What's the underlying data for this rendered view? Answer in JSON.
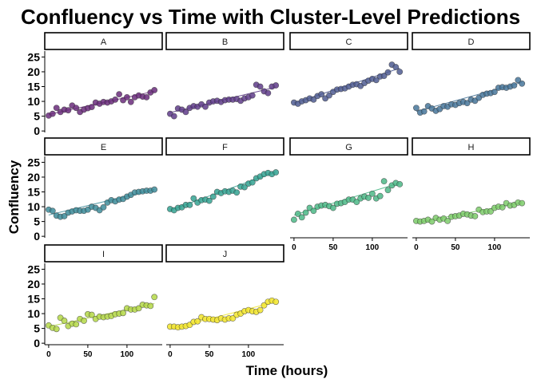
{
  "chart_data": {
    "type": "scatter",
    "title": "Confluency vs Time with Cluster-Level Predictions",
    "xlabel": "Time (hours)",
    "ylabel": "Confluency",
    "x_ticks": [
      0,
      50,
      100
    ],
    "y_ticks": [
      0,
      5,
      10,
      15,
      20,
      25
    ],
    "xlim": [
      -5,
      145
    ],
    "ylim": [
      -0.5,
      27
    ],
    "grid": false,
    "legend": "none",
    "facets": [
      {
        "label": "A",
        "color": "#6a2c7b",
        "x": [
          0,
          5,
          10,
          15,
          20,
          25,
          30,
          35,
          40,
          45,
          50,
          55,
          60,
          65,
          70,
          75,
          80,
          85,
          90,
          95,
          100,
          105,
          110,
          115,
          120,
          125,
          130,
          135
        ],
        "y": [
          5.2,
          5.8,
          7.8,
          6.4,
          7.2,
          7.0,
          8.6,
          7.8,
          6.4,
          7.2,
          7.7,
          8.1,
          9.6,
          9.2,
          9.8,
          9.6,
          10.0,
          10.6,
          12.4,
          10.4,
          11.4,
          9.8,
          11.4,
          12.0,
          11.6,
          11.4,
          13.0,
          13.8
        ],
        "fit": [
          5.6,
          13.4
        ]
      },
      {
        "label": "B",
        "color": "#5f3c8a",
        "x": [
          0,
          5,
          10,
          15,
          20,
          25,
          30,
          35,
          40,
          45,
          50,
          55,
          60,
          65,
          70,
          75,
          80,
          85,
          90,
          95,
          100,
          105,
          110,
          115,
          120,
          125,
          130,
          135
        ],
        "y": [
          5.8,
          5.0,
          7.6,
          7.2,
          6.4,
          7.8,
          8.4,
          8.2,
          9.0,
          8.2,
          9.6,
          10.0,
          10.2,
          9.8,
          10.4,
          10.6,
          10.6,
          10.8,
          10.2,
          11.0,
          11.4,
          12.0,
          15.6,
          15.0,
          13.4,
          12.8,
          15.0,
          15.4
        ],
        "fit": [
          6.2,
          14.8
        ]
      },
      {
        "label": "C",
        "color": "#4f5c92",
        "x": [
          0,
          5,
          10,
          15,
          20,
          25,
          30,
          35,
          40,
          45,
          50,
          55,
          60,
          65,
          70,
          75,
          80,
          85,
          90,
          95,
          100,
          105,
          110,
          115,
          120,
          125,
          130,
          135
        ],
        "y": [
          9.6,
          9.2,
          10.0,
          10.4,
          11.0,
          10.6,
          11.8,
          12.4,
          11.0,
          12.0,
          13.2,
          14.0,
          14.2,
          14.4,
          15.0,
          15.6,
          15.8,
          15.2,
          16.2,
          17.0,
          17.6,
          17.2,
          18.4,
          18.6,
          19.8,
          22.4,
          21.6,
          20.0
        ],
        "fit": [
          9.4,
          21.2
        ]
      },
      {
        "label": "D",
        "color": "#47759a",
        "x": [
          0,
          5,
          10,
          15,
          20,
          25,
          30,
          35,
          40,
          45,
          50,
          55,
          60,
          65,
          70,
          75,
          80,
          85,
          90,
          95,
          100,
          105,
          110,
          115,
          120,
          125,
          130,
          135
        ],
        "y": [
          7.8,
          6.2,
          6.6,
          8.4,
          7.6,
          6.8,
          7.4,
          8.4,
          8.2,
          9.0,
          8.8,
          9.4,
          9.8,
          9.4,
          10.6,
          10.2,
          11.2,
          12.2,
          12.6,
          12.8,
          13.2,
          14.6,
          14.8,
          14.6,
          15.0,
          15.4,
          17.2,
          16.0
        ],
        "fit": [
          6.6,
          16.4
        ]
      },
      {
        "label": "E",
        "color": "#3d8c9a",
        "x": [
          0,
          5,
          10,
          15,
          20,
          25,
          30,
          35,
          40,
          45,
          50,
          55,
          60,
          65,
          70,
          75,
          80,
          85,
          90,
          95,
          100,
          105,
          110,
          115,
          120,
          125,
          130,
          135
        ],
        "y": [
          9.0,
          8.6,
          7.0,
          6.6,
          6.8,
          8.0,
          8.4,
          8.8,
          8.6,
          8.6,
          9.0,
          10.0,
          9.6,
          8.8,
          9.8,
          11.4,
          12.2,
          11.8,
          12.4,
          12.6,
          13.4,
          14.0,
          14.8,
          15.0,
          15.2,
          15.4,
          15.4,
          15.8
        ],
        "fit": [
          7.2,
          15.8
        ]
      },
      {
        "label": "F",
        "color": "#34a292",
        "x": [
          0,
          5,
          10,
          15,
          20,
          25,
          30,
          35,
          40,
          45,
          50,
          55,
          60,
          65,
          70,
          75,
          80,
          85,
          90,
          95,
          100,
          105,
          110,
          115,
          120,
          125,
          130,
          135
        ],
        "y": [
          9.2,
          8.8,
          9.6,
          9.8,
          10.6,
          10.6,
          12.8,
          11.4,
          12.2,
          12.4,
          12.0,
          13.4,
          15.0,
          14.6,
          15.2,
          15.0,
          15.4,
          14.8,
          16.8,
          16.6,
          17.8,
          18.2,
          19.6,
          20.2,
          21.0,
          21.4,
          21.0,
          21.6
        ],
        "fit": [
          8.8,
          21.8
        ]
      },
      {
        "label": "G",
        "color": "#4cb887",
        "x": [
          0,
          5,
          10,
          15,
          20,
          25,
          30,
          35,
          40,
          45,
          50,
          55,
          60,
          65,
          70,
          75,
          80,
          85,
          90,
          95,
          100,
          105,
          110,
          115,
          120,
          125,
          130,
          135
        ],
        "y": [
          5.6,
          7.6,
          6.4,
          8.0,
          9.6,
          8.6,
          10.0,
          10.4,
          10.6,
          10.2,
          9.6,
          11.0,
          11.2,
          11.6,
          12.4,
          12.4,
          11.6,
          12.8,
          13.4,
          13.0,
          14.4,
          12.8,
          13.6,
          18.6,
          15.6,
          17.2,
          18.0,
          17.6
        ],
        "fit": [
          7.2,
          18.0
        ]
      },
      {
        "label": "H",
        "color": "#7ccb6a",
        "x": [
          0,
          5,
          10,
          15,
          20,
          25,
          30,
          35,
          40,
          45,
          50,
          55,
          60,
          65,
          70,
          75,
          80,
          85,
          90,
          95,
          100,
          105,
          110,
          115,
          120,
          125,
          130,
          135
        ],
        "y": [
          5.2,
          5.0,
          5.2,
          5.6,
          5.0,
          6.2,
          5.6,
          6.0,
          5.2,
          6.6,
          6.8,
          7.0,
          7.6,
          7.4,
          7.0,
          6.8,
          9.0,
          8.2,
          8.4,
          8.4,
          9.6,
          10.0,
          9.8,
          11.2,
          10.4,
          10.6,
          11.4,
          11.2
        ],
        "fit": [
          4.6,
          11.4
        ]
      },
      {
        "label": "I",
        "color": "#b4d846",
        "x": [
          0,
          5,
          10,
          15,
          20,
          25,
          30,
          35,
          40,
          45,
          50,
          55,
          60,
          65,
          70,
          75,
          80,
          85,
          90,
          95,
          100,
          105,
          110,
          115,
          120,
          125,
          130,
          135
        ],
        "y": [
          6.0,
          5.2,
          4.8,
          8.6,
          7.6,
          5.8,
          6.6,
          6.4,
          8.2,
          7.6,
          9.8,
          9.6,
          8.2,
          9.0,
          8.8,
          9.0,
          9.2,
          9.8,
          10.0,
          10.2,
          11.8,
          11.4,
          11.4,
          11.8,
          13.0,
          12.8,
          12.6,
          15.6
        ],
        "fit": [
          5.6,
          13.4
        ]
      },
      {
        "label": "J",
        "color": "#f2e52a",
        "x": [
          0,
          5,
          10,
          15,
          20,
          25,
          30,
          35,
          40,
          45,
          50,
          55,
          60,
          65,
          70,
          75,
          80,
          85,
          90,
          95,
          100,
          105,
          110,
          115,
          120,
          125,
          130,
          135
        ],
        "y": [
          5.6,
          5.6,
          5.4,
          5.6,
          5.8,
          6.2,
          7.2,
          7.4,
          8.8,
          8.2,
          8.2,
          8.0,
          7.8,
          8.4,
          8.0,
          8.4,
          8.4,
          9.6,
          10.0,
          10.8,
          11.2,
          10.8,
          10.6,
          11.2,
          12.8,
          14.0,
          14.4,
          14.0
        ],
        "fit": [
          4.8,
          14.0
        ]
      }
    ]
  }
}
